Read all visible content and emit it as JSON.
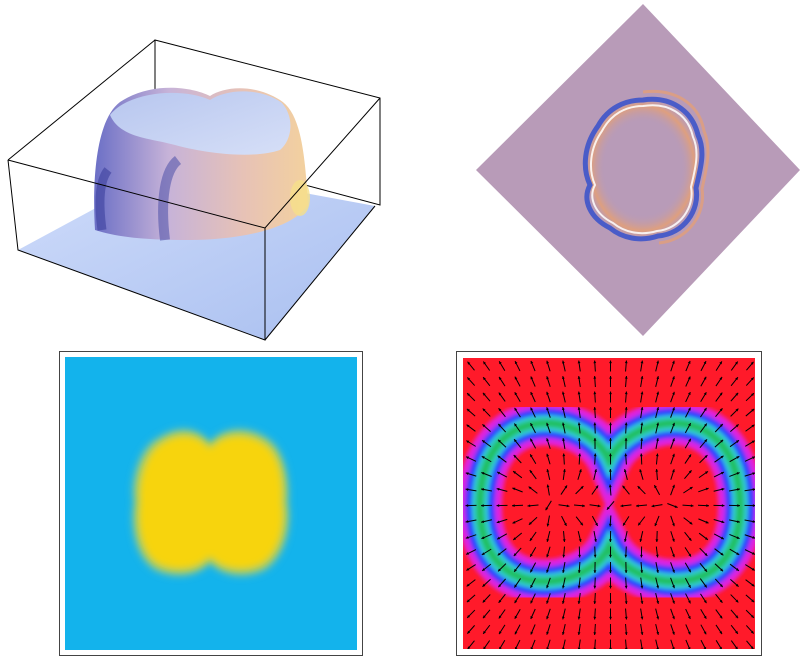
{
  "figure": {
    "panels": [
      {
        "id": "surface-3d",
        "kind": "3d-surface-plot",
        "colors": {
          "surface_light": "#c8d6f5",
          "surface_dark": "#5b5fb0",
          "highlight": "#f2c9a0",
          "box_line": "#000000"
        }
      },
      {
        "id": "diamond-field",
        "kind": "rotated-density-plot",
        "colors": {
          "background": "#b89bb8",
          "ring_blue": "#4a5cc8",
          "ring_orange": "#e8a070",
          "ring_white": "#ffffff"
        }
      },
      {
        "id": "heatmap-2d",
        "kind": "2d-density-plot",
        "colors": {
          "background": "#13b3ec",
          "blob": "#f7d40f",
          "edge": "#8ec98c"
        }
      },
      {
        "id": "vector-field",
        "kind": "vector-field-over-density",
        "colors": {
          "background": "#ff1a2a",
          "band_blue": "#2a3cff",
          "band_magenta": "#e020e0",
          "band_green": "#20c060",
          "band_cyan": "#30d0d0",
          "arrow": "#000000"
        }
      }
    ]
  }
}
